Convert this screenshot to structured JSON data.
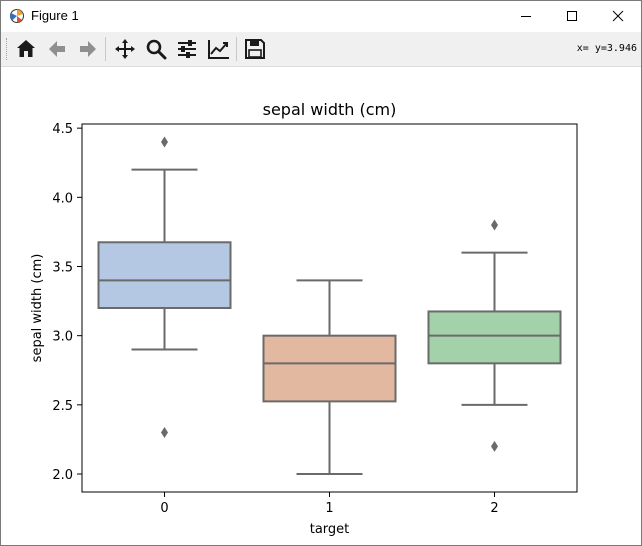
{
  "window": {
    "title": "Figure 1",
    "app_icon": "matplotlib-icon",
    "controls": [
      "minimize-icon",
      "maximize-icon",
      "close-icon"
    ]
  },
  "toolbar": {
    "buttons": [
      {
        "name": "home",
        "icon": "home-icon"
      },
      {
        "name": "back",
        "icon": "arrow-left-icon"
      },
      {
        "name": "forward",
        "icon": "arrow-right-icon"
      },
      {
        "name": "pan",
        "icon": "move-icon"
      },
      {
        "name": "zoom",
        "icon": "magnifier-icon"
      },
      {
        "name": "configure-subplots",
        "icon": "sliders-icon"
      },
      {
        "name": "edit-axis",
        "icon": "line-chart-icon"
      },
      {
        "name": "save",
        "icon": "floppy-disk-icon"
      }
    ],
    "coords": "x= y=3.946"
  },
  "chart_data": {
    "type": "box",
    "title": "sepal width (cm)",
    "xlabel": "target",
    "ylabel": "sepal width (cm)",
    "categories": [
      "0",
      "1",
      "2"
    ],
    "ylim": [
      1.87,
      4.53
    ],
    "yticks": [
      "2.0",
      "2.5",
      "3.0",
      "3.5",
      "4.0",
      "4.5"
    ],
    "boxes": [
      {
        "category": "0",
        "whisker_low": 2.9,
        "q1": 3.2,
        "median": 3.4,
        "q3": 3.675,
        "whisker_high": 4.2,
        "outliers": [
          4.4,
          2.3
        ],
        "color": "#b4c8e3"
      },
      {
        "category": "1",
        "whisker_low": 2.0,
        "q1": 2.525,
        "median": 2.8,
        "q3": 3.0,
        "whisker_high": 3.4,
        "outliers": [],
        "color": "#e3b8a0"
      },
      {
        "category": "2",
        "whisker_low": 2.5,
        "q1": 2.8,
        "median": 3.0,
        "q3": 3.175,
        "whisker_high": 3.6,
        "outliers": [
          3.8,
          2.2
        ],
        "color": "#a3d1aa"
      }
    ],
    "line_color": "#6a6a6a",
    "grid": false
  }
}
